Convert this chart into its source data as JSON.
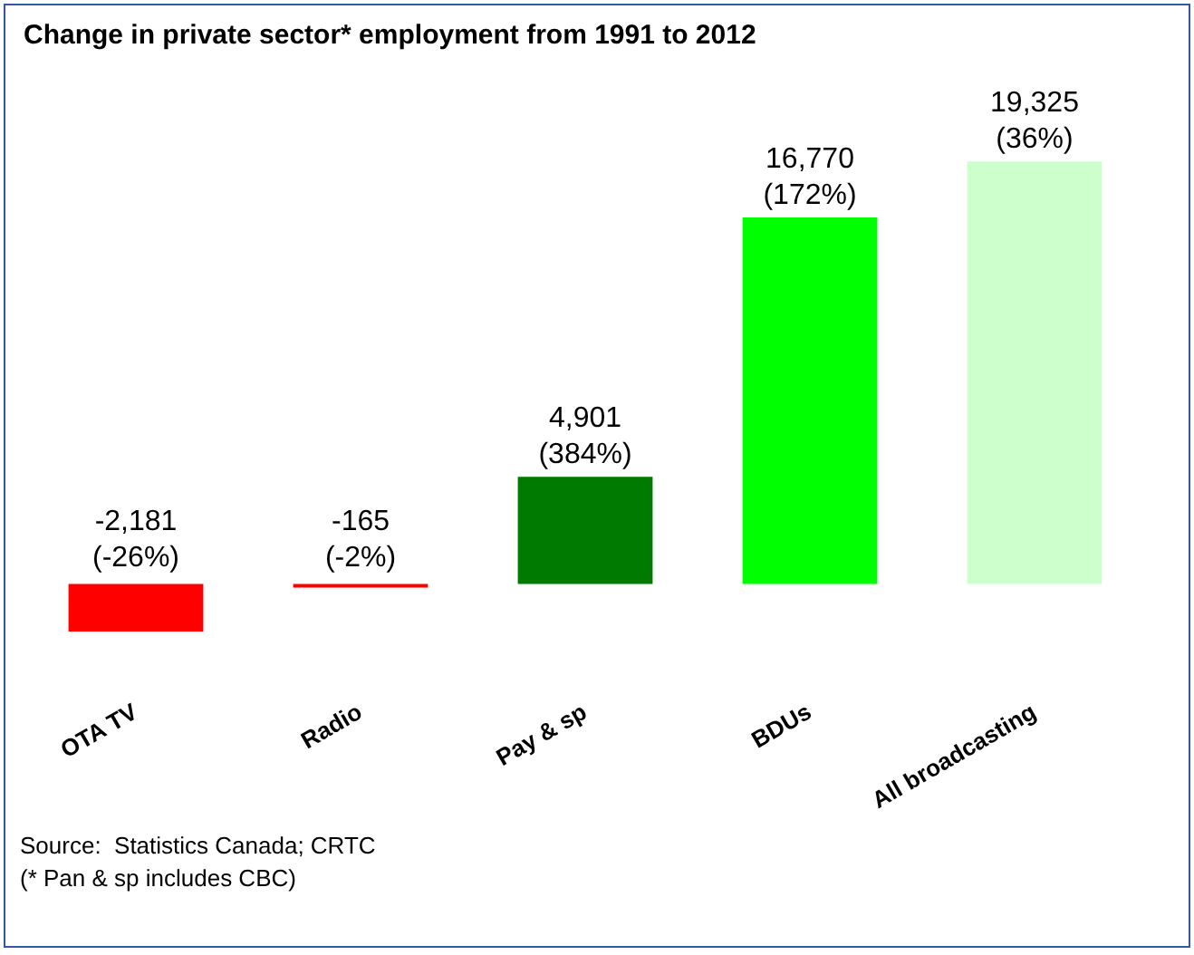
{
  "chart_data": {
    "type": "bar",
    "title": "Change in private sector* employment from 1991 to 2012",
    "categories": [
      "OTA TV",
      "Radio",
      "Pay & sp",
      "BDUs",
      "All broadcasting"
    ],
    "values": [
      -2181,
      -165,
      4901,
      16770,
      19325
    ],
    "colors": [
      "#ff0000",
      "#ff0000",
      "#007a00",
      "#00ff00",
      "#ccffcc"
    ],
    "value_labels": [
      "-2,181\n(-26%)",
      "-165\n(-2%)",
      "4,901\n(384%)",
      "16,770\n(172%)",
      "19,325\n(36%)"
    ],
    "annotations": [
      "Source:  Statistics Canada; CRTC",
      "(* Pan & sp includes CBC)"
    ],
    "grid": false,
    "legend": false
  }
}
